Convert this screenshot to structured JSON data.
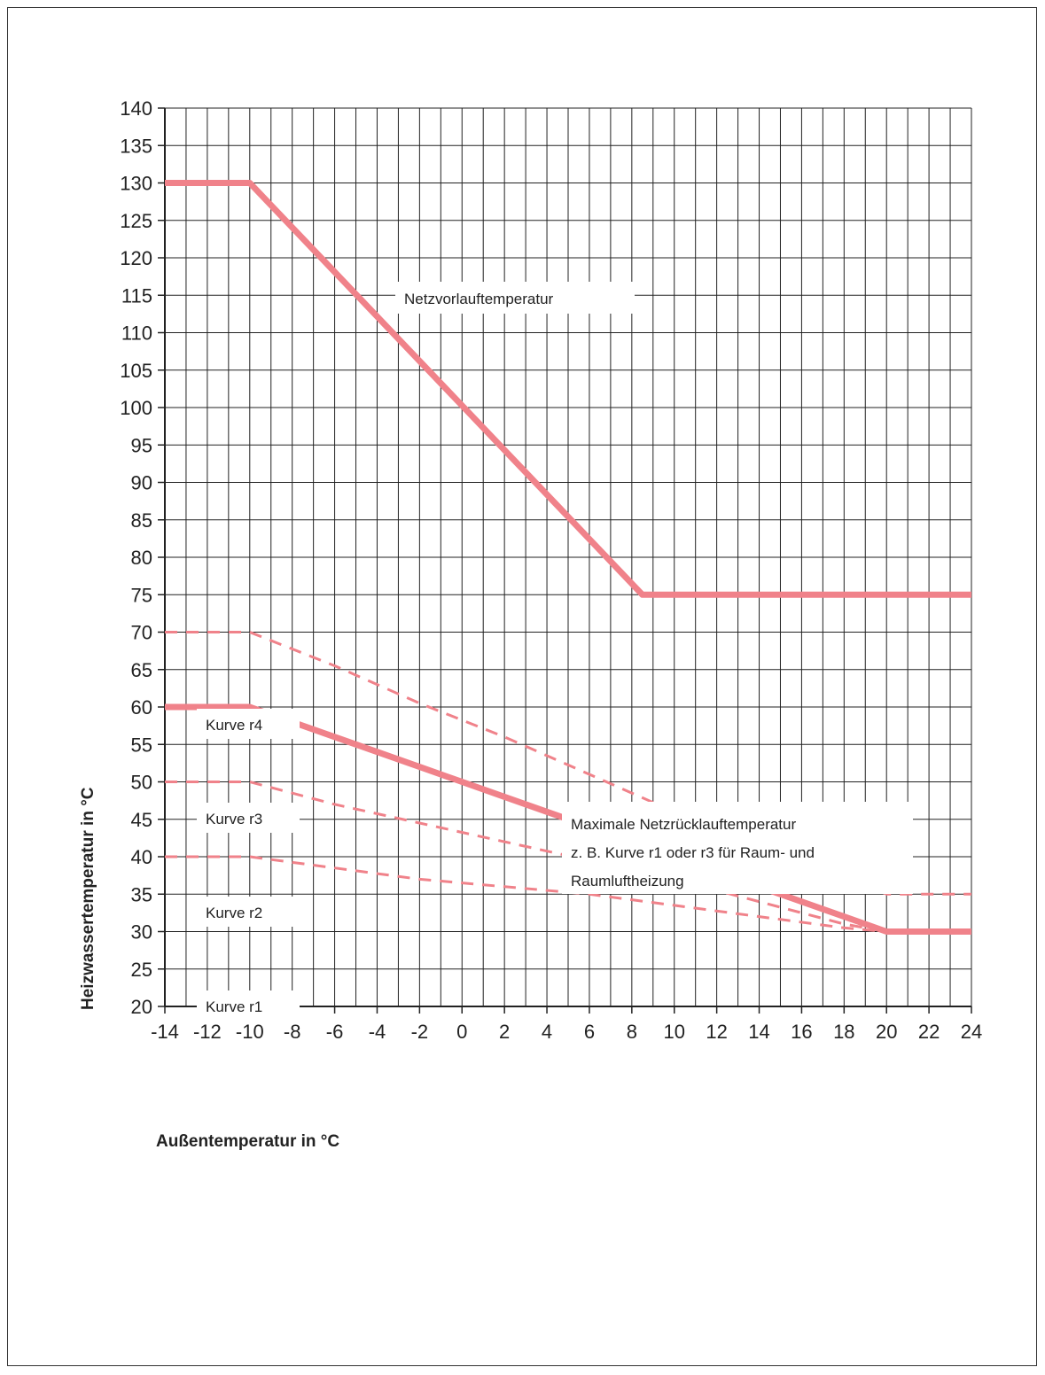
{
  "chart_data": {
    "type": "line",
    "xlabel": "Außentemperatur in °C",
    "ylabel": "Heizwassertemperatur in °C",
    "xlim": [
      -14,
      24
    ],
    "ylim": [
      20,
      140
    ],
    "x_ticks": [
      -14,
      -12,
      -10,
      -8,
      -6,
      -4,
      -2,
      0,
      2,
      4,
      6,
      8,
      10,
      12,
      14,
      16,
      18,
      20,
      22,
      24
    ],
    "y_ticks": [
      20,
      25,
      30,
      35,
      40,
      45,
      50,
      55,
      60,
      65,
      70,
      75,
      80,
      85,
      90,
      95,
      100,
      105,
      110,
      115,
      120,
      125,
      130,
      135,
      140
    ],
    "grid": true,
    "line_color": "#f0828a",
    "series": [
      {
        "name": "Netzvorlauftemperatur",
        "style": "solid",
        "points": [
          [
            -14,
            130
          ],
          [
            -10,
            130
          ],
          [
            8.5,
            75
          ],
          [
            24,
            75
          ]
        ]
      },
      {
        "name": "Kurve r4",
        "style": "dashed",
        "points": [
          [
            -14,
            70
          ],
          [
            -10,
            70
          ],
          [
            -6,
            65.5
          ],
          [
            -2,
            60.5
          ],
          [
            2,
            56
          ],
          [
            6,
            51
          ],
          [
            10,
            46
          ],
          [
            14,
            42
          ],
          [
            18,
            37.5
          ],
          [
            20,
            35
          ],
          [
            24,
            35
          ]
        ]
      },
      {
        "name": "Kurve r3",
        "style": "solid",
        "points": [
          [
            -14,
            60
          ],
          [
            -10,
            60
          ],
          [
            -6,
            56
          ],
          [
            -2,
            52
          ],
          [
            2,
            48
          ],
          [
            6,
            44
          ],
          [
            10,
            40
          ],
          [
            14,
            36
          ],
          [
            18,
            32
          ],
          [
            20,
            30
          ],
          [
            24,
            30
          ]
        ]
      },
      {
        "name": "Kurve r2",
        "style": "dashed",
        "points": [
          [
            -14,
            50
          ],
          [
            -10,
            50
          ],
          [
            -6,
            47
          ],
          [
            -2,
            44.5
          ],
          [
            2,
            42
          ],
          [
            6,
            39.5
          ],
          [
            10,
            37
          ],
          [
            14,
            34
          ],
          [
            18,
            31
          ],
          [
            20,
            30
          ],
          [
            24,
            30
          ]
        ]
      },
      {
        "name": "Kurve r1",
        "style": "dashed",
        "points": [
          [
            -14,
            40
          ],
          [
            -10,
            40
          ],
          [
            -6,
            38.5
          ],
          [
            -2,
            37
          ],
          [
            2,
            36
          ],
          [
            6,
            35
          ],
          [
            10,
            33.5
          ],
          [
            14,
            32
          ],
          [
            18,
            30.5
          ],
          [
            20,
            30
          ],
          [
            24,
            30
          ]
        ]
      }
    ],
    "annotations": {
      "netzvorlauf": "Netzvorlauftemperatur",
      "r4": "Kurve r4",
      "r3": "Kurve r3",
      "r2": "Kurve r2",
      "r1": "Kurve r1",
      "max_line1": "Maximale Netzrücklauftemperatur",
      "max_line2": "z. B. Kurve r1 oder r3 für Raum- und",
      "max_line3": "Raumluftheizung"
    }
  }
}
